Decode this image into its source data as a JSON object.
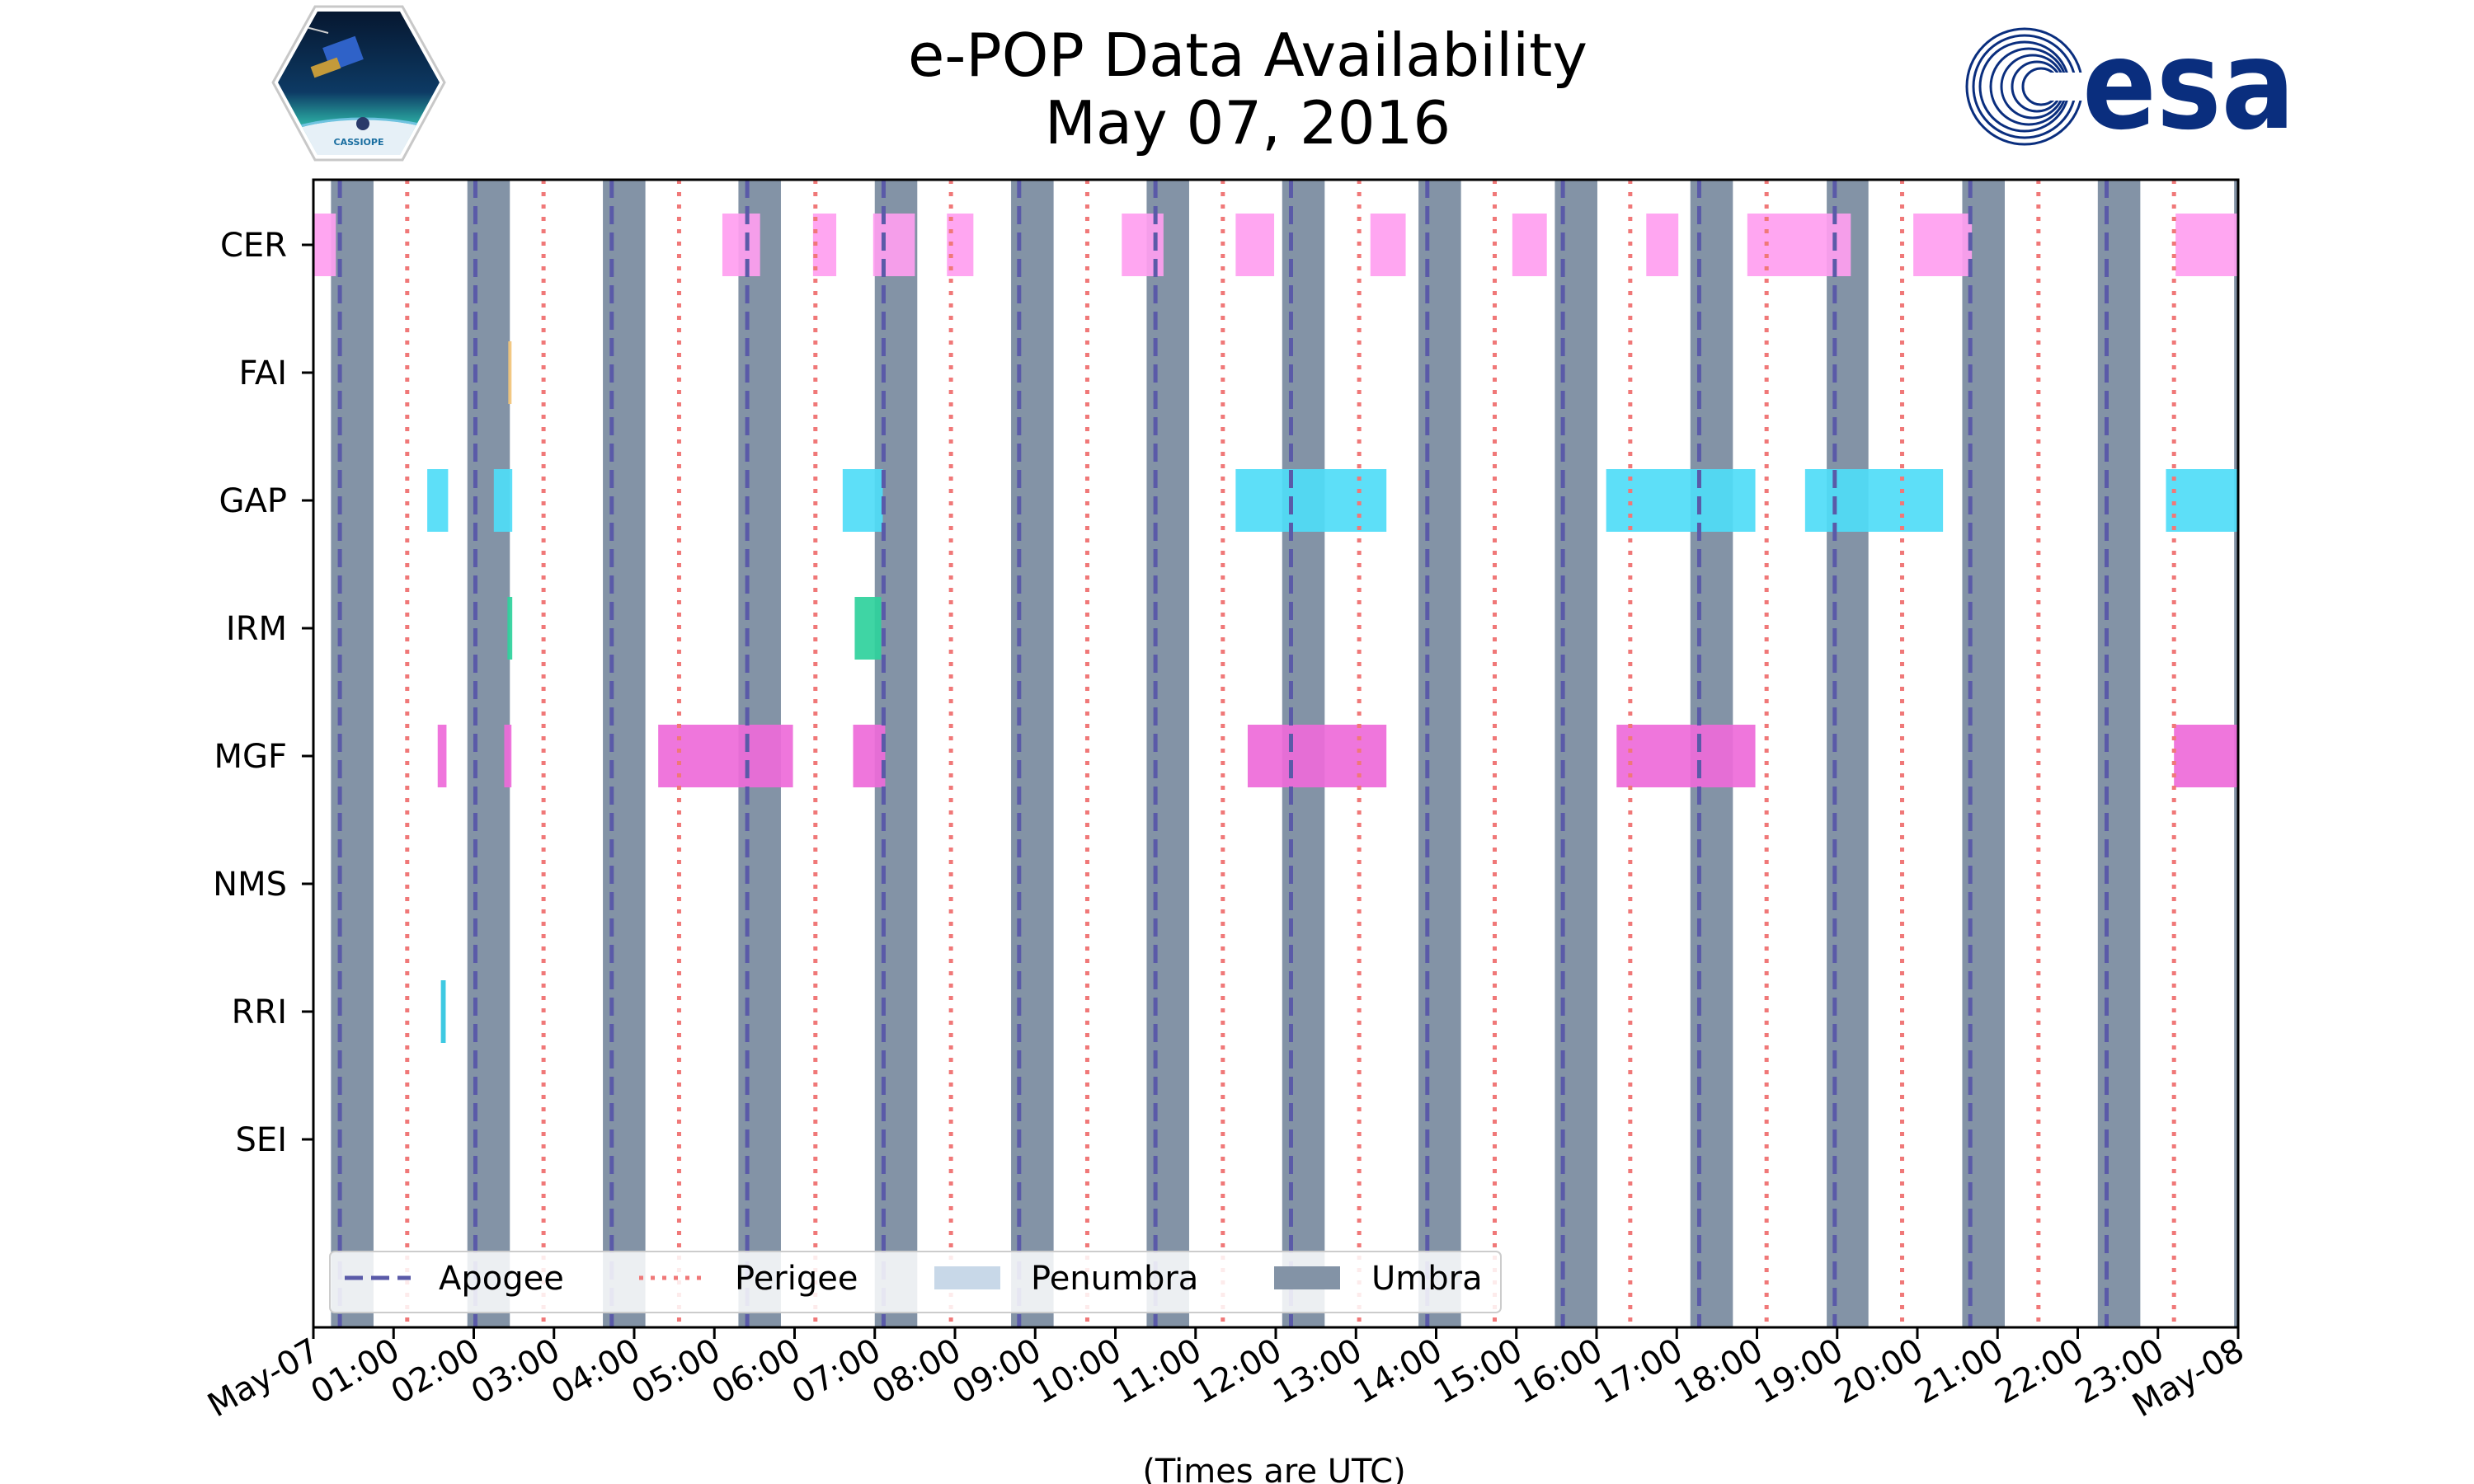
{
  "chart_data": {
    "type": "timeline",
    "title_line1": "e-POP Data Availability",
    "title_line2": "May 07, 2016",
    "xlabel": "(Times are UTC)",
    "xlim_hours": [
      0,
      24
    ],
    "x_ticks": [
      {
        "hour": 0,
        "label": "May-07"
      },
      {
        "hour": 1,
        "label": "01:00"
      },
      {
        "hour": 2,
        "label": "02:00"
      },
      {
        "hour": 3,
        "label": "03:00"
      },
      {
        "hour": 4,
        "label": "04:00"
      },
      {
        "hour": 5,
        "label": "05:00"
      },
      {
        "hour": 6,
        "label": "06:00"
      },
      {
        "hour": 7,
        "label": "07:00"
      },
      {
        "hour": 8,
        "label": "08:00"
      },
      {
        "hour": 9,
        "label": "09:00"
      },
      {
        "hour": 10,
        "label": "10:00"
      },
      {
        "hour": 11,
        "label": "11:00"
      },
      {
        "hour": 12,
        "label": "12:00"
      },
      {
        "hour": 13,
        "label": "13:00"
      },
      {
        "hour": 14,
        "label": "14:00"
      },
      {
        "hour": 15,
        "label": "15:00"
      },
      {
        "hour": 16,
        "label": "16:00"
      },
      {
        "hour": 17,
        "label": "17:00"
      },
      {
        "hour": 18,
        "label": "18:00"
      },
      {
        "hour": 19,
        "label": "19:00"
      },
      {
        "hour": 20,
        "label": "20:00"
      },
      {
        "hour": 21,
        "label": "21:00"
      },
      {
        "hour": 22,
        "label": "22:00"
      },
      {
        "hour": 23,
        "label": "23:00"
      },
      {
        "hour": 24,
        "label": "May-08"
      }
    ],
    "instruments": [
      "CER",
      "FAI",
      "GAP",
      "IRM",
      "MGF",
      "NMS",
      "RRI",
      "SEI"
    ],
    "umbra": [
      [
        0.22,
        0.75
      ],
      [
        1.92,
        2.45
      ],
      [
        3.61,
        4.14
      ],
      [
        5.3,
        5.83
      ],
      [
        7.0,
        7.53
      ],
      [
        8.7,
        9.23
      ],
      [
        10.39,
        10.92
      ],
      [
        12.08,
        12.61
      ],
      [
        13.78,
        14.31
      ],
      [
        15.48,
        16.01
      ],
      [
        17.17,
        17.7
      ],
      [
        18.87,
        19.39
      ],
      [
        20.56,
        21.09
      ],
      [
        22.25,
        22.78
      ],
      [
        23.95,
        24.0
      ]
    ],
    "apogee_hours": [
      0.33,
      2.02,
      3.72,
      5.41,
      7.11,
      8.8,
      10.5,
      12.19,
      13.89,
      15.58,
      17.28,
      18.97,
      20.66,
      22.36
    ],
    "perigee_hours": [
      1.17,
      2.87,
      4.56,
      6.26,
      7.95,
      9.65,
      11.34,
      13.04,
      14.73,
      16.42,
      18.12,
      19.81,
      21.51,
      23.2
    ],
    "series": [
      {
        "name": "CER",
        "color": "#ff9ef0",
        "intervals": [
          [
            0.0,
            0.28
          ],
          [
            5.1,
            5.57
          ],
          [
            6.23,
            6.52
          ],
          [
            6.98,
            7.5
          ],
          [
            7.9,
            8.23
          ],
          [
            10.08,
            10.6
          ],
          [
            11.5,
            11.98
          ],
          [
            13.18,
            13.62
          ],
          [
            14.95,
            15.38
          ],
          [
            16.62,
            17.02
          ],
          [
            17.88,
            19.17
          ],
          [
            19.95,
            20.68
          ],
          [
            23.22,
            24.0
          ]
        ]
      },
      {
        "name": "FAI",
        "color": "#f2c47a",
        "intervals": [
          [
            2.43,
            2.47
          ]
        ]
      },
      {
        "name": "GAP",
        "color": "#4fdcf7",
        "intervals": [
          [
            1.42,
            1.68
          ],
          [
            2.25,
            2.48
          ],
          [
            6.6,
            7.1
          ],
          [
            11.5,
            13.38
          ],
          [
            16.12,
            17.98
          ],
          [
            18.6,
            20.32
          ],
          [
            23.1,
            24.0
          ]
        ]
      },
      {
        "name": "IRM",
        "color": "#2fd19c",
        "intervals": [
          [
            2.42,
            2.48
          ],
          [
            6.75,
            7.08
          ]
        ]
      },
      {
        "name": "MGF",
        "color": "#ee6ad9",
        "intervals": [
          [
            1.55,
            1.66
          ],
          [
            2.38,
            2.47
          ],
          [
            4.3,
            5.98
          ],
          [
            6.73,
            7.13
          ],
          [
            11.65,
            13.38
          ],
          [
            16.25,
            17.98
          ],
          [
            23.2,
            24.0
          ]
        ]
      },
      {
        "name": "NMS",
        "color": "#ee6ad9",
        "intervals": []
      },
      {
        "name": "RRI",
        "color": "#2ec4e0",
        "intervals": [
          [
            1.59,
            1.65
          ]
        ]
      },
      {
        "name": "SEI",
        "color": "#ee6ad9",
        "intervals": []
      }
    ],
    "legend": {
      "placement": "bottom-left",
      "items": [
        {
          "label": "Apogee",
          "style": "dashed",
          "color": "#5a5aa8"
        },
        {
          "label": "Perigee",
          "style": "dotted",
          "color": "#f07878"
        },
        {
          "label": "Penumbra",
          "style": "patch",
          "color": "#c8d8e8"
        },
        {
          "label": "Umbra",
          "style": "patch",
          "color": "#8393a6"
        }
      ]
    },
    "colors": {
      "umbra": "#8393a6",
      "apogee": "#5a5aa8",
      "perigee": "#f07878",
      "penumbra": "#c8d8e8"
    }
  },
  "logos": {
    "left": {
      "name": "CASSIOPE",
      "text": "CASSIOPE"
    },
    "right": {
      "name": "esa",
      "text": "esa"
    }
  }
}
